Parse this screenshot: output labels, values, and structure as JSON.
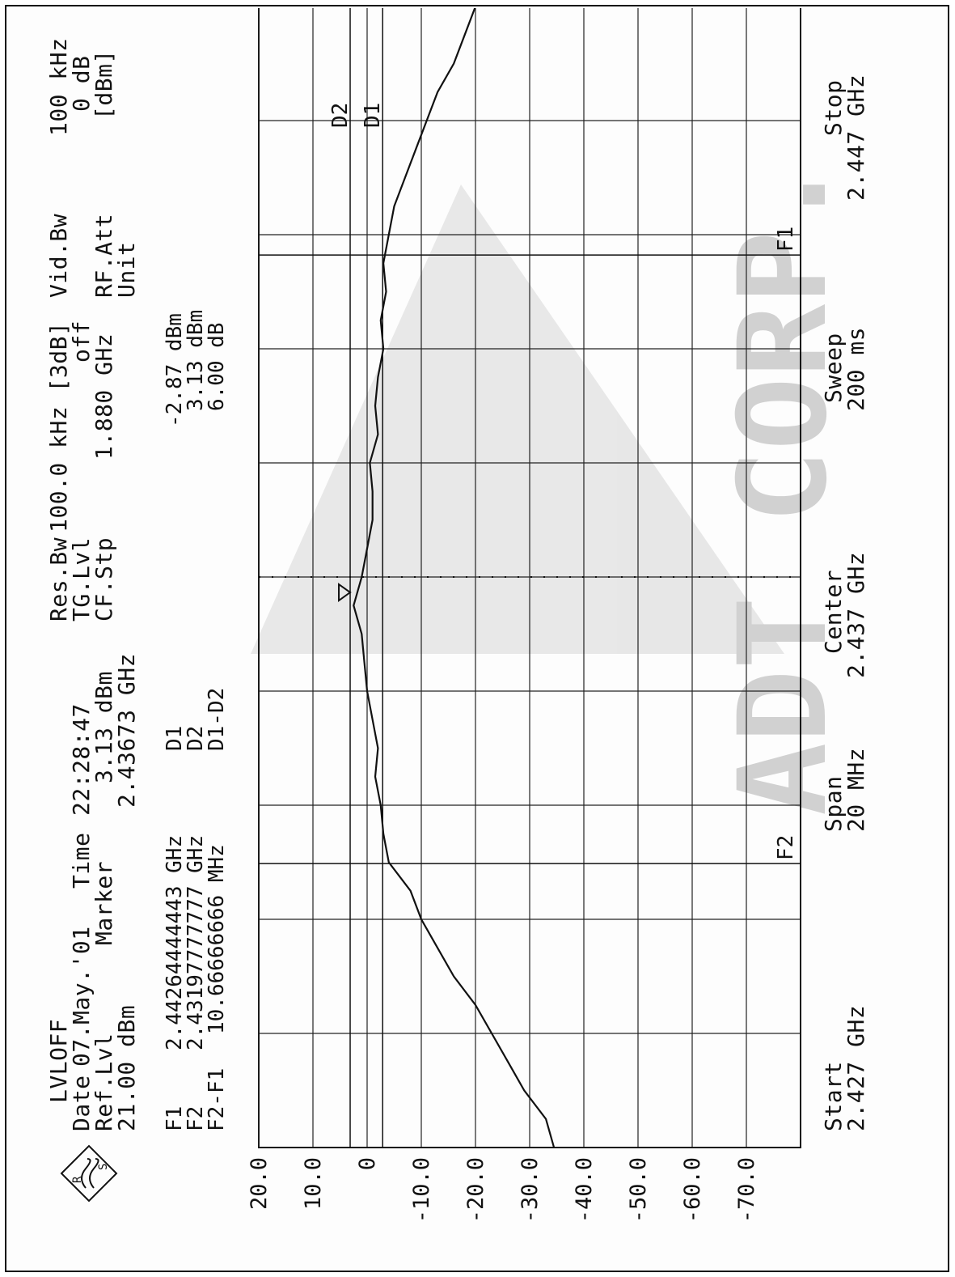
{
  "instrument": {
    "mode": "LVLOFF",
    "date_label": "Date",
    "date": "07.May.'01",
    "time_label": "Time",
    "time": "22:28:47",
    "ref_label": "Ref.Lvl",
    "ref_value": "21.00 dBm",
    "marker_label": "Marker",
    "marker_level": "3.13 dBm",
    "marker_freq": "2.43673 GHz",
    "res_bw_label": "Res.Bw",
    "res_bw": "100.0 kHz [3dB]",
    "tg_lvl_label": "TG.Lvl",
    "tg_lvl": "off",
    "cf_stp_label": "CF.Stp",
    "cf_stp": "1.880 GHz",
    "vid_bw_label": "Vid.Bw",
    "vid_bw": "100 kHz",
    "rf_att_label": "RF.Att",
    "rf_att": "0 dB",
    "unit_label": "Unit",
    "unit": "[dBm]"
  },
  "markers_table": [
    {
      "name": "F1",
      "freq": "2.44264444443 GHz",
      "dname": "D1",
      "dvalue": "-2.87 dBm"
    },
    {
      "name": "F2",
      "freq": "2.43197777777 GHz",
      "dname": "D2",
      "dvalue": "3.13 dBm"
    },
    {
      "name": "F2-F1",
      "freq": "10.66666666 MHz",
      "dname": "D1-D2",
      "dvalue": "6.00 dB"
    }
  ],
  "footer": {
    "start_label": "Start",
    "start": "2.427 GHz",
    "span_label": "Span",
    "span": "20 MHz",
    "center_label": "Center",
    "center": "2.437 GHz",
    "sweep_label": "Sweep",
    "sweep": "200 ms",
    "stop_label": "Stop",
    "stop": "2.447 GHz"
  },
  "watermark": "ADT CORP.",
  "chart_data": {
    "type": "line",
    "x_unit": "GHz",
    "y_unit": "dBm",
    "xlim": [
      2.427,
      2.447
    ],
    "ylim": [
      -80,
      20
    ],
    "ytick_labels": [
      "20.0",
      "10.0",
      "0",
      "-10.0",
      "-20.0",
      "-30.0",
      "-40.0",
      "-50.0",
      "-60.0",
      "-70.0"
    ],
    "ytick_values": [
      20,
      10,
      0,
      -10,
      -20,
      -30,
      -40,
      -50,
      -60,
      -70
    ],
    "grid": true,
    "reference_lines": [
      {
        "label": "D2",
        "y": 3.13
      },
      {
        "label": "D1",
        "y": -2.87
      }
    ],
    "frequency_lines": [
      {
        "label": "F2",
        "x": 2.43197777777
      },
      {
        "label": "F1",
        "x": 2.44264444443
      }
    ],
    "marker_point": {
      "x": 2.43673,
      "y": 3.13
    },
    "series": [
      {
        "x": [
          2.427,
          2.4275,
          2.428,
          2.4285,
          2.429,
          2.4295,
          2.43,
          2.4305,
          2.431,
          2.4315,
          2.432,
          2.4325,
          2.433,
          2.4335,
          2.434,
          2.4345,
          2.435,
          2.4355,
          2.436,
          2.4365,
          2.437,
          2.4375,
          2.438,
          2.4385,
          2.439,
          2.4395,
          2.44,
          2.4405,
          2.441,
          2.4415,
          2.442,
          2.4425,
          2.443,
          2.4435,
          2.444,
          2.4445,
          2.445,
          2.4455,
          2.446,
          2.4465,
          2.447
        ],
        "y": [
          -34.5,
          -33,
          -29,
          -26,
          -23,
          -20,
          -16,
          -13,
          -10,
          -8,
          -4,
          -3,
          -2.5,
          -1.5,
          -2,
          -1,
          0,
          0.5,
          1,
          2.5,
          1,
          0,
          -1,
          -1,
          -0.5,
          -2,
          -1.5,
          -2,
          -3,
          -2.5,
          -3.5,
          -3,
          -4,
          -5,
          -7,
          -9,
          -11,
          -13,
          -16,
          -18,
          -20
        ]
      }
    ]
  }
}
